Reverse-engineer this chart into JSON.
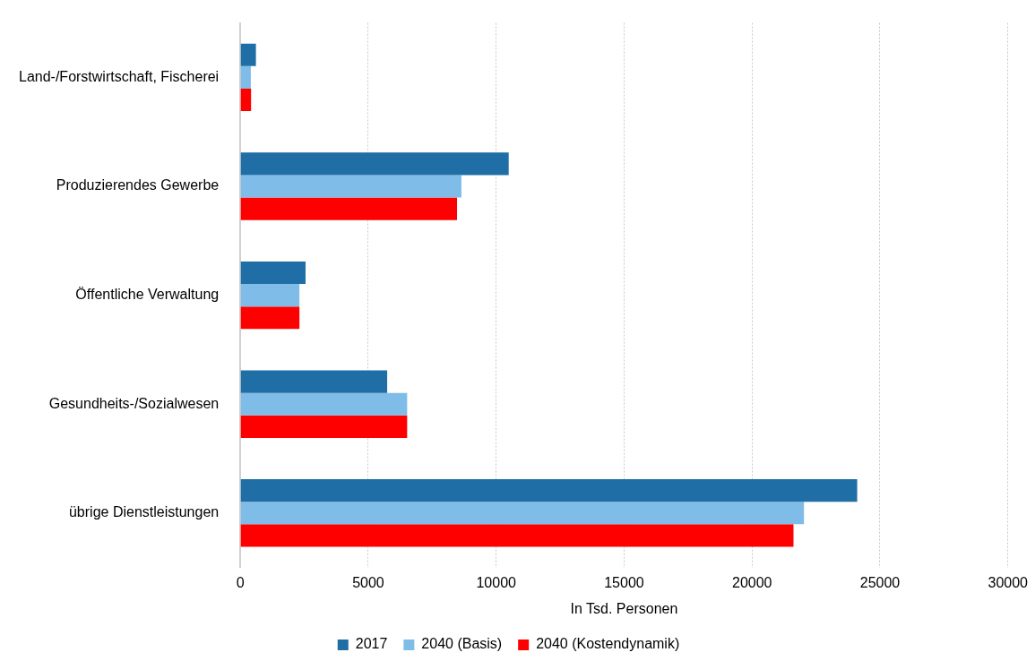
{
  "chart_data": {
    "type": "bar",
    "orientation": "horizontal",
    "xlabel": "In Tsd. Personen",
    "categories": [
      "Land-/Forstwirtschaft, Fischerei",
      "Produzierendes Gewerbe",
      "Öffentliche Verwaltung",
      "Gesundheits-/Sozialwesen",
      "übrige Dienstleistungen"
    ],
    "series": [
      {
        "name": "2017",
        "color": "#1f6ea5",
        "values": [
          610,
          10490,
          2550,
          5740,
          24110
        ]
      },
      {
        "name": "2040 (Basis)",
        "color": "#7fbce7",
        "values": [
          410,
          8640,
          2310,
          6520,
          22030
        ]
      },
      {
        "name": "2040 (Kostendynamik)",
        "color": "#ff0000",
        "values": [
          420,
          8470,
          2310,
          6520,
          21620
        ]
      }
    ],
    "xlim": [
      0,
      30000
    ],
    "xticks": [
      0,
      5000,
      10000,
      15000,
      20000,
      25000,
      30000
    ],
    "grid": "x",
    "legend": "bottom"
  }
}
